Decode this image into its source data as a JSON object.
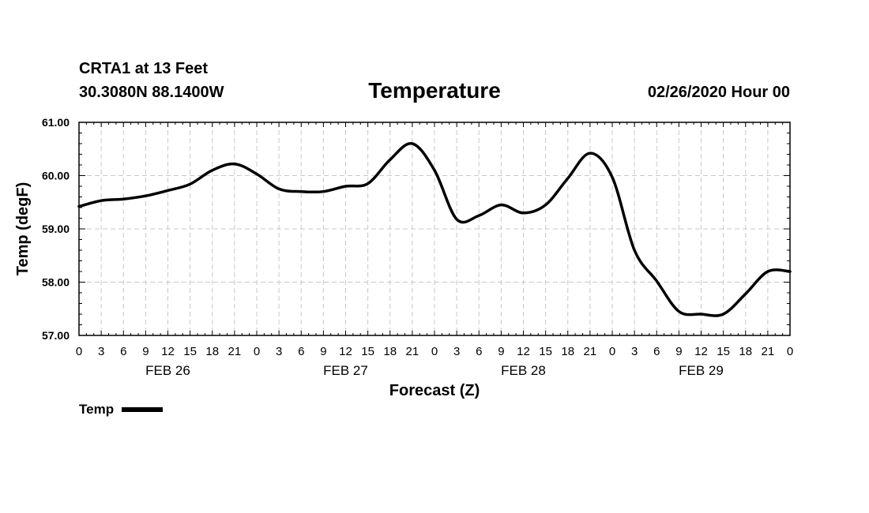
{
  "header": {
    "station": "CRTA1 at 13 Feet",
    "coords": "30.3080N 88.1400W",
    "title": "Temperature",
    "timestamp": "02/26/2020 Hour 00"
  },
  "chart_data": {
    "type": "line",
    "title": "Temperature",
    "xlabel": "Forecast (Z)",
    "ylabel": "Temp (degF)",
    "ylim": [
      57.0,
      61.0
    ],
    "yticks": [
      "57.00",
      "58.00",
      "59.00",
      "60.00",
      "61.00"
    ],
    "xlim_hours": [
      0,
      96
    ],
    "xtick_step_hours": 3,
    "xtick_labels": [
      "0",
      "3",
      "6",
      "9",
      "12",
      "15",
      "18",
      "21",
      "0",
      "3",
      "6",
      "9",
      "12",
      "15",
      "18",
      "21",
      "0",
      "3",
      "6",
      "9",
      "12",
      "15",
      "18",
      "21",
      "0",
      "3",
      "6",
      "9",
      "12",
      "15",
      "18",
      "21",
      "0"
    ],
    "day_labels": [
      {
        "label": "FEB 26",
        "hour": 12
      },
      {
        "label": "FEB 27",
        "hour": 36
      },
      {
        "label": "FEB 28",
        "hour": 60
      },
      {
        "label": "FEB 29",
        "hour": 84
      }
    ],
    "grid": true,
    "legend_position": "bottom-left",
    "series": [
      {
        "name": "Temp",
        "color": "#000000",
        "x": [
          0,
          3,
          6,
          9,
          12,
          15,
          18,
          21,
          24,
          27,
          30,
          33,
          36,
          39,
          42,
          45,
          48,
          51,
          54,
          57,
          60,
          63,
          66,
          69,
          72,
          75,
          78,
          81,
          84,
          87,
          90,
          93,
          96
        ],
        "y": [
          59.42,
          59.53,
          59.56,
          59.62,
          59.72,
          59.84,
          60.1,
          60.22,
          60.03,
          59.75,
          59.7,
          59.7,
          59.8,
          59.85,
          60.3,
          60.6,
          60.1,
          59.18,
          59.25,
          59.45,
          59.3,
          59.45,
          59.95,
          60.42,
          59.97,
          58.6,
          58.02,
          57.45,
          57.4,
          57.4,
          57.78,
          58.2,
          58.2
        ]
      }
    ]
  }
}
